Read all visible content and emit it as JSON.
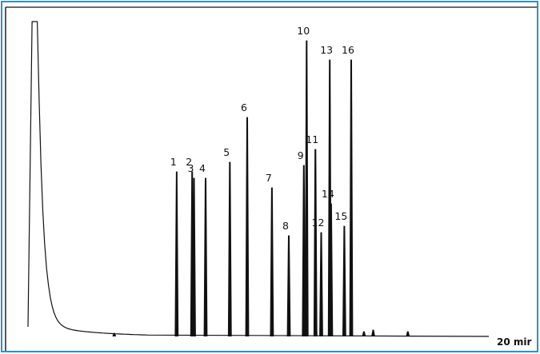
{
  "chart_data": {
    "type": "line",
    "title": "",
    "xlabel": "",
    "ylabel": "",
    "x_end_label": "20 mir",
    "xlim": [
      0,
      20
    ],
    "ylim": [
      0,
      100
    ],
    "grid": false,
    "line_color": "#111111",
    "frame_color": "#2e8fd0",
    "baseline_level": 1.5,
    "solvent_peak": {
      "time": 0.35,
      "height": 100
    },
    "peaks": [
      {
        "label": "1",
        "time": 6.5,
        "height": 53
      },
      {
        "label": "2",
        "time": 7.17,
        "height": 53
      },
      {
        "label": "3",
        "time": 7.25,
        "height": 51
      },
      {
        "label": "4",
        "time": 7.75,
        "height": 51
      },
      {
        "label": "5",
        "time": 8.8,
        "height": 56
      },
      {
        "label": "6",
        "time": 9.55,
        "height": 70
      },
      {
        "label": "7",
        "time": 10.62,
        "height": 48
      },
      {
        "label": "8",
        "time": 11.35,
        "height": 33
      },
      {
        "label": "9",
        "time": 12.0,
        "height": 55
      },
      {
        "label": "10",
        "time": 12.12,
        "height": 94
      },
      {
        "label": "11",
        "time": 12.5,
        "height": 60
      },
      {
        "label": "12",
        "time": 12.75,
        "height": 34
      },
      {
        "label": "13",
        "time": 13.12,
        "height": 88
      },
      {
        "label": "14",
        "time": 13.18,
        "height": 43
      },
      {
        "label": "15",
        "time": 13.75,
        "height": 36
      },
      {
        "label": "16",
        "time": 14.05,
        "height": 88
      }
    ],
    "minor_peaks": [
      {
        "time": 3.8,
        "height": 2.5
      },
      {
        "time": 14.6,
        "height": 3.0
      },
      {
        "time": 15.0,
        "height": 3.5
      },
      {
        "time": 16.5,
        "height": 3.0
      }
    ]
  }
}
